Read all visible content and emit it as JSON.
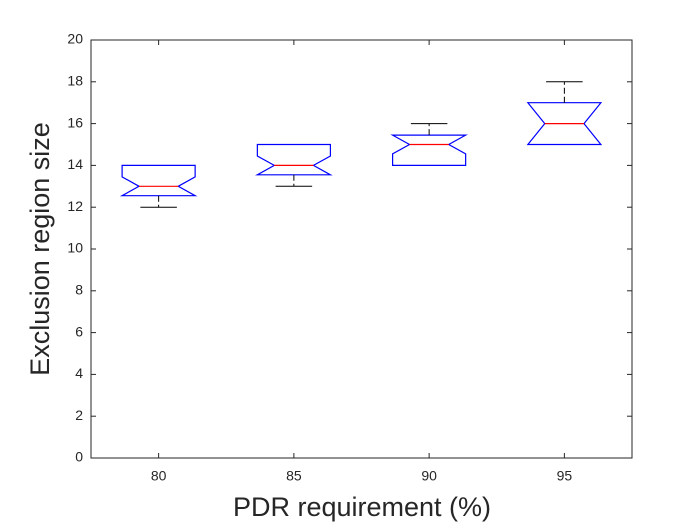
{
  "chart_data": {
    "type": "box",
    "x_label": "PDR requirement (%)",
    "y_label": "Exclusion region size",
    "categories": [
      "80",
      "85",
      "90",
      "95"
    ],
    "boxes": [
      {
        "q1": 13,
        "median": 13,
        "q3": 14,
        "notch_low": 12.55,
        "notch_high": 13.45,
        "whisker_low": 12,
        "whisker_high": 14
      },
      {
        "q1": 14,
        "median": 14,
        "q3": 15,
        "notch_low": 13.55,
        "notch_high": 14.45,
        "whisker_low": 13,
        "whisker_high": 15
      },
      {
        "q1": 14,
        "median": 15,
        "q3": 15,
        "notch_low": 14.55,
        "notch_high": 15.45,
        "whisker_low": 14,
        "whisker_high": 16
      },
      {
        "q1": 15,
        "median": 16,
        "q3": 17,
        "notch_low": 15,
        "notch_high": 17,
        "whisker_low": 15,
        "whisker_high": 18
      }
    ],
    "box_color": "#0000ff",
    "median_color": "#ff0000",
    "whisker_color": "#000000",
    "ylim": [
      0,
      20
    ],
    "yticks": [
      0,
      2,
      4,
      6,
      8,
      10,
      12,
      14,
      16,
      18,
      20
    ]
  }
}
